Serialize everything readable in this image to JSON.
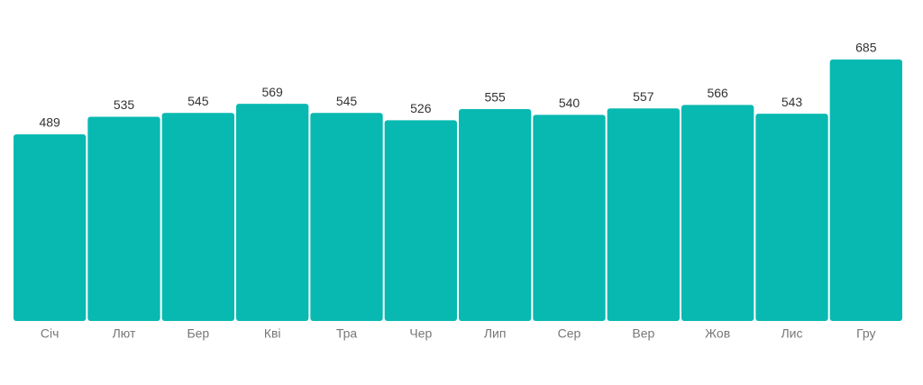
{
  "chart_data": {
    "type": "bar",
    "categories": [
      "Січ",
      "Лют",
      "Бер",
      "Кві",
      "Тра",
      "Чер",
      "Лип",
      "Сер",
      "Вер",
      "Жов",
      "Лис",
      "Гру"
    ],
    "values": [
      489,
      535,
      545,
      569,
      545,
      526,
      555,
      540,
      557,
      566,
      543,
      685
    ],
    "color": "#08b9b1"
  }
}
